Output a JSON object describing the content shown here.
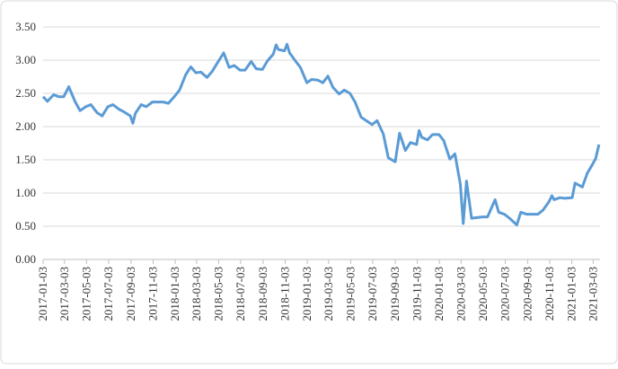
{
  "chart_data": {
    "type": "line",
    "x": [
      "2017-01-03",
      "2017-01-15",
      "2017-02-01",
      "2017-02-15",
      "2017-03-01",
      "2017-03-15",
      "2017-04-01",
      "2017-04-15",
      "2017-05-01",
      "2017-05-15",
      "2017-06-01",
      "2017-06-15",
      "2017-07-01",
      "2017-07-15",
      "2017-08-01",
      "2017-08-15",
      "2017-09-01",
      "2017-09-08",
      "2017-09-15",
      "2017-10-01",
      "2017-10-15",
      "2017-11-01",
      "2017-11-15",
      "2017-12-01",
      "2017-12-15",
      "2018-01-02",
      "2018-01-15",
      "2018-02-01",
      "2018-02-15",
      "2018-03-01",
      "2018-03-15",
      "2018-04-01",
      "2018-04-15",
      "2018-05-01",
      "2018-05-17",
      "2018-06-01",
      "2018-06-15",
      "2018-07-01",
      "2018-07-15",
      "2018-08-01",
      "2018-08-15",
      "2018-09-01",
      "2018-09-15",
      "2018-10-01",
      "2018-10-09",
      "2018-10-15",
      "2018-11-01",
      "2018-11-08",
      "2018-11-15",
      "2018-12-01",
      "2018-12-15",
      "2019-01-02",
      "2019-01-15",
      "2019-02-01",
      "2019-02-15",
      "2019-03-01",
      "2019-03-15",
      "2019-04-01",
      "2019-04-15",
      "2019-05-01",
      "2019-05-15",
      "2019-06-01",
      "2019-06-15",
      "2019-07-01",
      "2019-07-15",
      "2019-08-01",
      "2019-08-15",
      "2019-09-03",
      "2019-09-15",
      "2019-10-01",
      "2019-10-15",
      "2019-11-01",
      "2019-11-08",
      "2019-11-15",
      "2019-12-01",
      "2019-12-15",
      "2020-01-02",
      "2020-01-15",
      "2020-02-01",
      "2020-02-15",
      "2020-03-01",
      "2020-03-09",
      "2020-03-18",
      "2020-04-01",
      "2020-04-15",
      "2020-05-01",
      "2020-05-15",
      "2020-06-05",
      "2020-06-15",
      "2020-07-01",
      "2020-07-15",
      "2020-08-04",
      "2020-08-15",
      "2020-09-01",
      "2020-09-15",
      "2020-10-01",
      "2020-10-15",
      "2020-11-01",
      "2020-11-09",
      "2020-11-15",
      "2020-12-01",
      "2020-12-15",
      "2021-01-04",
      "2021-01-12",
      "2021-02-01",
      "2021-02-15",
      "2021-03-01",
      "2021-03-10",
      "2021-03-19"
    ],
    "values": [
      2.45,
      2.38,
      2.48,
      2.45,
      2.45,
      2.6,
      2.38,
      2.24,
      2.3,
      2.33,
      2.21,
      2.16,
      2.3,
      2.33,
      2.26,
      2.22,
      2.16,
      2.05,
      2.2,
      2.33,
      2.3,
      2.37,
      2.37,
      2.37,
      2.35,
      2.46,
      2.55,
      2.78,
      2.9,
      2.81,
      2.82,
      2.74,
      2.83,
      2.97,
      3.11,
      2.89,
      2.92,
      2.85,
      2.85,
      2.98,
      2.87,
      2.86,
      2.99,
      3.09,
      3.23,
      3.16,
      3.14,
      3.24,
      3.11,
      2.99,
      2.89,
      2.66,
      2.71,
      2.7,
      2.66,
      2.76,
      2.59,
      2.49,
      2.55,
      2.5,
      2.37,
      2.14,
      2.09,
      2.03,
      2.09,
      1.89,
      1.53,
      1.47,
      1.9,
      1.64,
      1.76,
      1.73,
      1.94,
      1.84,
      1.8,
      1.88,
      1.88,
      1.79,
      1.51,
      1.59,
      1.13,
      0.54,
      1.18,
      0.62,
      0.63,
      0.64,
      0.64,
      0.9,
      0.71,
      0.68,
      0.62,
      0.52,
      0.71,
      0.68,
      0.68,
      0.68,
      0.74,
      0.87,
      0.96,
      0.9,
      0.93,
      0.92,
      0.93,
      1.15,
      1.09,
      1.3,
      1.43,
      1.52,
      1.73
    ],
    "color": "#5b9bd5",
    "xlim": [
      "2017-01-03",
      "2021-03-22"
    ],
    "xticks": [
      "2017-01-03",
      "2017-03-03",
      "2017-05-03",
      "2017-07-03",
      "2017-09-03",
      "2017-11-03",
      "2018-01-03",
      "2018-03-03",
      "2018-05-03",
      "2018-07-03",
      "2018-09-03",
      "2018-11-03",
      "2019-01-03",
      "2019-03-03",
      "2019-05-03",
      "2019-07-03",
      "2019-09-03",
      "2019-11-03",
      "2020-01-03",
      "2020-03-03",
      "2020-05-03",
      "2020-07-03",
      "2020-09-03",
      "2020-11-03",
      "2021-01-03",
      "2021-03-03"
    ],
    "ylim": [
      0,
      3.5
    ],
    "yticks": [
      {
        "value": 0,
        "label": "0.00"
      },
      {
        "value": 0.5,
        "label": "0.50"
      },
      {
        "value": 1,
        "label": "1.00"
      },
      {
        "value": 1.5,
        "label": "1.50"
      },
      {
        "value": 2,
        "label": "2.00"
      },
      {
        "value": 2.5,
        "label": "2.50"
      },
      {
        "value": 3,
        "label": "3.00"
      },
      {
        "value": 3.5,
        "label": "3.50"
      }
    ],
    "grid": true
  }
}
